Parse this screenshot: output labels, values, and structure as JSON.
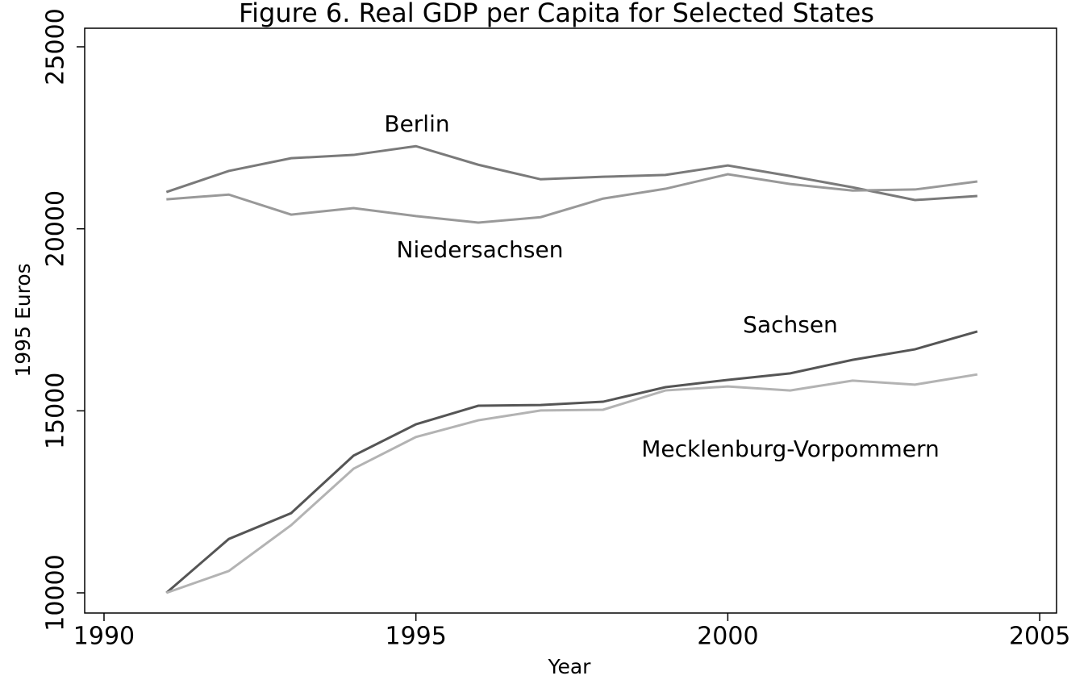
{
  "chart_data": {
    "type": "line",
    "title": "Figure 6. Real GDP per Capita for Selected States",
    "xlabel": "Year",
    "ylabel": "1995 Euros",
    "x": [
      1991,
      1992,
      1993,
      1994,
      1995,
      1996,
      1997,
      1998,
      1999,
      2000,
      2001,
      2002,
      2003,
      2004
    ],
    "series": [
      {
        "name": "Berlin",
        "color": "#7a7a7a",
        "values": [
          21010,
          21590,
          21940,
          22030,
          22270,
          21760,
          21360,
          21430,
          21480,
          21740,
          21450,
          21140,
          20790,
          20900
        ]
      },
      {
        "name": "Niedersachsen",
        "color": "#999999",
        "values": [
          20810,
          20940,
          20390,
          20570,
          20350,
          20170,
          20320,
          20830,
          21100,
          21500,
          21230,
          21050,
          21080,
          21300
        ]
      },
      {
        "name": "Sachsen",
        "color": "#555555",
        "values": [
          10000,
          11480,
          12190,
          13770,
          14630,
          15140,
          15160,
          15250,
          15650,
          15850,
          16030,
          16400,
          16690,
          17180
        ]
      },
      {
        "name": "Mecklenburg-Vorpommern",
        "color": "#b3b3b3",
        "values": [
          10000,
          10600,
          11860,
          13410,
          14280,
          14740,
          15010,
          15030,
          15560,
          15670,
          15560,
          15830,
          15720,
          16000
        ]
      }
    ],
    "xlim": [
      1989.69,
      2005.27
    ],
    "xticks": [
      1990,
      1995,
      2000,
      2005
    ],
    "ylim": [
      9446,
      25510
    ],
    "yticks": [
      10000,
      15000,
      20000,
      25000
    ]
  }
}
